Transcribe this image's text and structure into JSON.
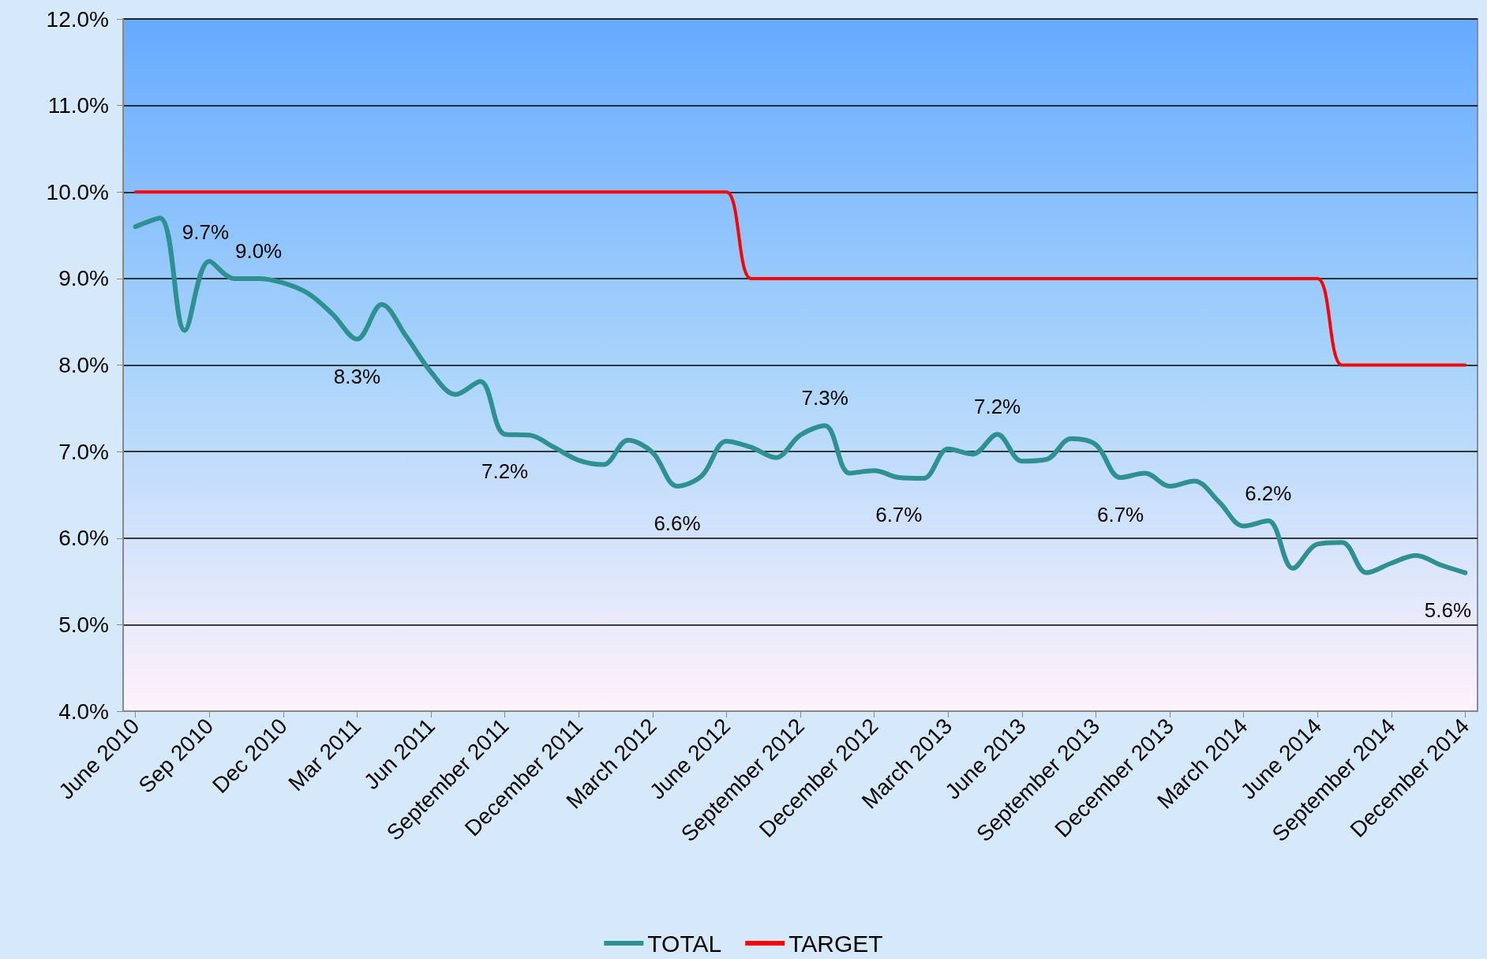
{
  "chart_data": {
    "type": "line",
    "categories": [
      "June 2010",
      null,
      null,
      "Sep 2010",
      null,
      null,
      "Dec 2010",
      null,
      null,
      "Mar 2011",
      null,
      null,
      "Jun 2011",
      null,
      null,
      "September 2011",
      null,
      null,
      "December 2011",
      null,
      null,
      "March 2012",
      null,
      null,
      "June 2012",
      null,
      null,
      "September 2012",
      null,
      null,
      "December 2012",
      null,
      null,
      "March 2013",
      null,
      null,
      "June 2013",
      null,
      null,
      "September 2013",
      null,
      null,
      "December 2013",
      null,
      null,
      "March 2014",
      null,
      null,
      "June 2014",
      null,
      null,
      "September 2014",
      null,
      null,
      "December 2014"
    ],
    "series": [
      {
        "name": "TOTAL",
        "color": "#2e9090",
        "values": [
          9.6,
          9.7,
          8.4,
          9.2,
          9.0,
          9.0,
          8.95,
          8.83,
          8.59,
          8.3,
          8.7,
          8.33,
          7.92,
          7.66,
          7.81,
          7.2,
          7.19,
          7.05,
          6.9,
          6.85,
          7.13,
          6.99,
          6.6,
          6.72,
          7.12,
          7.05,
          6.93,
          7.19,
          7.3,
          6.75,
          6.78,
          6.7,
          6.69,
          7.03,
          6.97,
          7.2,
          6.89,
          6.91,
          7.15,
          7.08,
          6.7,
          6.75,
          6.6,
          6.66,
          6.42,
          6.14,
          6.2,
          5.65,
          5.93,
          5.95,
          5.6,
          5.71,
          5.8,
          5.69,
          5.6
        ],
        "value_labels": [
          null,
          "9.7%",
          null,
          null,
          null,
          "9.0%",
          null,
          null,
          null,
          "8.3%",
          null,
          null,
          null,
          null,
          null,
          "7.2%",
          null,
          null,
          null,
          null,
          null,
          null,
          "6.6%",
          null,
          null,
          null,
          null,
          null,
          "7.3%",
          null,
          null,
          "6.7%",
          null,
          null,
          null,
          "7.2%",
          null,
          null,
          null,
          null,
          "6.7%",
          null,
          null,
          null,
          null,
          null,
          "6.2%",
          null,
          null,
          null,
          null,
          null,
          null,
          null,
          "5.6%"
        ]
      },
      {
        "name": "TARGET",
        "color": "#ff0000",
        "values": [
          10,
          10,
          10,
          10,
          10,
          10,
          10,
          10,
          10,
          10,
          10,
          10,
          10,
          10,
          10,
          10,
          10,
          10,
          10,
          10,
          10,
          10,
          10,
          10,
          10,
          9,
          9,
          9,
          9,
          9,
          9,
          9,
          9,
          9,
          9,
          9,
          9,
          9,
          9,
          9,
          9,
          9,
          9,
          9,
          9,
          9,
          9,
          9,
          9,
          8,
          8,
          8,
          8,
          8,
          8
        ]
      }
    ],
    "ylim": [
      4,
      12
    ],
    "yticks": [
      {
        "value": 4,
        "label": "4.0%"
      },
      {
        "value": 5,
        "label": "5.0%"
      },
      {
        "value": 6,
        "label": "6.0%"
      },
      {
        "value": 7,
        "label": "7.0%"
      },
      {
        "value": 8,
        "label": "8.0%"
      },
      {
        "value": 9,
        "label": "9.0%"
      },
      {
        "value": 10,
        "label": "10.0%"
      },
      {
        "value": 11,
        "label": "11.0%"
      },
      {
        "value": 12,
        "label": "12.0%"
      }
    ],
    "grid": "y",
    "legend": "bottom",
    "marker": "none",
    "line_style": "solid"
  }
}
